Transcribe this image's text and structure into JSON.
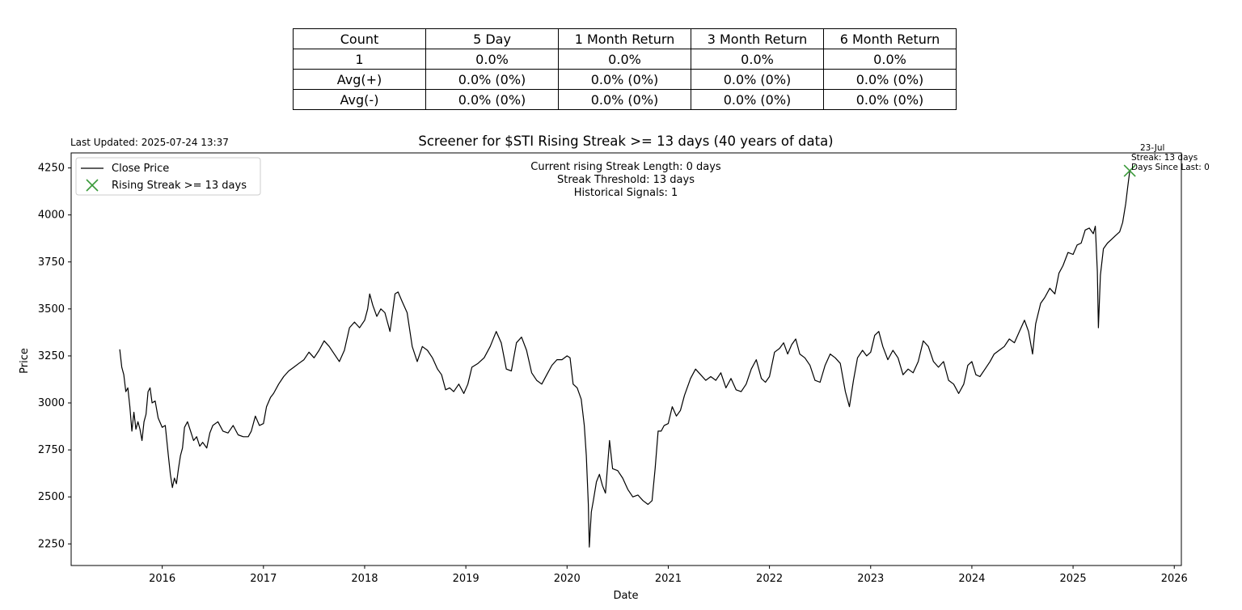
{
  "table": {
    "header": [
      "Count",
      "5 Day",
      "1 Month Return",
      "3 Month Return",
      "6 Month Return"
    ],
    "rows": [
      [
        "1",
        "0.0%",
        "0.0%",
        "0.0%",
        "0.0%"
      ],
      [
        "Avg(+)",
        "0.0% (0%)",
        "0.0% (0%)",
        "0.0% (0%)",
        "0.0% (0%)"
      ],
      [
        "Avg(-)",
        "0.0% (0%)",
        "0.0% (0%)",
        "0.0% (0%)",
        "0.0% (0%)"
      ]
    ]
  },
  "last_updated": "Last Updated: 2025-07-24 13:37",
  "info_lines": [
    "Current rising Streak Length: 0 days",
    "Streak Threshold: 13 days",
    "Historical Signals: 1"
  ],
  "signal_annotation": [
    "23-Jul",
    "Streak: 13 days",
    "Days Since Last: 0"
  ],
  "colors": {
    "line": "#000000",
    "marker": "#3a9a3a"
  },
  "chart_data": {
    "type": "line",
    "title": "Screener for $STI Rising Streak >= 13 days (40 years of data)",
    "xlabel": "Date",
    "ylabel": "Price",
    "xlim": [
      2015.1,
      2026.07
    ],
    "ylim": [
      2135,
      4330
    ],
    "xticks": [
      "2016",
      "2017",
      "2018",
      "2019",
      "2020",
      "2021",
      "2022",
      "2023",
      "2024",
      "2025",
      "2026"
    ],
    "yticks": [
      "2250",
      "2500",
      "2750",
      "3000",
      "3250",
      "3500",
      "3750",
      "4000",
      "4250"
    ],
    "legend_position": "top-left",
    "series": [
      {
        "name": "Close Price",
        "points": [
          [
            2015.58,
            3285
          ],
          [
            2015.6,
            3190
          ],
          [
            2015.62,
            3150
          ],
          [
            2015.64,
            3060
          ],
          [
            2015.66,
            3080
          ],
          [
            2015.68,
            2980
          ],
          [
            2015.7,
            2850
          ],
          [
            2015.72,
            2950
          ],
          [
            2015.74,
            2860
          ],
          [
            2015.76,
            2900
          ],
          [
            2015.78,
            2860
          ],
          [
            2015.8,
            2800
          ],
          [
            2015.82,
            2900
          ],
          [
            2015.84,
            2940
          ],
          [
            2015.86,
            3060
          ],
          [
            2015.88,
            3080
          ],
          [
            2015.9,
            3000
          ],
          [
            2015.93,
            3010
          ],
          [
            2015.96,
            2920
          ],
          [
            2016.0,
            2870
          ],
          [
            2016.03,
            2880
          ],
          [
            2016.06,
            2720
          ],
          [
            2016.08,
            2620
          ],
          [
            2016.1,
            2550
          ],
          [
            2016.12,
            2600
          ],
          [
            2016.14,
            2570
          ],
          [
            2016.16,
            2650
          ],
          [
            2016.18,
            2720
          ],
          [
            2016.2,
            2760
          ],
          [
            2016.22,
            2870
          ],
          [
            2016.25,
            2900
          ],
          [
            2016.28,
            2850
          ],
          [
            2016.31,
            2800
          ],
          [
            2016.34,
            2820
          ],
          [
            2016.37,
            2770
          ],
          [
            2016.4,
            2790
          ],
          [
            2016.44,
            2760
          ],
          [
            2016.47,
            2840
          ],
          [
            2016.5,
            2880
          ],
          [
            2016.55,
            2900
          ],
          [
            2016.6,
            2850
          ],
          [
            2016.65,
            2840
          ],
          [
            2016.7,
            2880
          ],
          [
            2016.75,
            2830
          ],
          [
            2016.8,
            2820
          ],
          [
            2016.85,
            2820
          ],
          [
            2016.88,
            2850
          ],
          [
            2016.92,
            2930
          ],
          [
            2016.96,
            2880
          ],
          [
            2017.0,
            2890
          ],
          [
            2017.03,
            2980
          ],
          [
            2017.07,
            3030
          ],
          [
            2017.1,
            3050
          ],
          [
            2017.15,
            3100
          ],
          [
            2017.2,
            3140
          ],
          [
            2017.25,
            3170
          ],
          [
            2017.3,
            3190
          ],
          [
            2017.35,
            3210
          ],
          [
            2017.4,
            3230
          ],
          [
            2017.45,
            3270
          ],
          [
            2017.5,
            3240
          ],
          [
            2017.55,
            3280
          ],
          [
            2017.6,
            3330
          ],
          [
            2017.65,
            3300
          ],
          [
            2017.7,
            3260
          ],
          [
            2017.75,
            3220
          ],
          [
            2017.8,
            3280
          ],
          [
            2017.85,
            3400
          ],
          [
            2017.9,
            3430
          ],
          [
            2017.95,
            3400
          ],
          [
            2018.0,
            3440
          ],
          [
            2018.03,
            3500
          ],
          [
            2018.05,
            3580
          ],
          [
            2018.08,
            3520
          ],
          [
            2018.12,
            3460
          ],
          [
            2018.16,
            3500
          ],
          [
            2018.2,
            3480
          ],
          [
            2018.25,
            3380
          ],
          [
            2018.3,
            3580
          ],
          [
            2018.33,
            3590
          ],
          [
            2018.37,
            3540
          ],
          [
            2018.42,
            3480
          ],
          [
            2018.47,
            3300
          ],
          [
            2018.52,
            3220
          ],
          [
            2018.57,
            3300
          ],
          [
            2018.62,
            3280
          ],
          [
            2018.67,
            3240
          ],
          [
            2018.72,
            3180
          ],
          [
            2018.76,
            3150
          ],
          [
            2018.8,
            3070
          ],
          [
            2018.84,
            3080
          ],
          [
            2018.88,
            3060
          ],
          [
            2018.93,
            3100
          ],
          [
            2018.98,
            3050
          ],
          [
            2019.02,
            3100
          ],
          [
            2019.06,
            3190
          ],
          [
            2019.12,
            3210
          ],
          [
            2019.18,
            3240
          ],
          [
            2019.24,
            3300
          ],
          [
            2019.3,
            3380
          ],
          [
            2019.35,
            3320
          ],
          [
            2019.4,
            3180
          ],
          [
            2019.45,
            3170
          ],
          [
            2019.5,
            3320
          ],
          [
            2019.55,
            3350
          ],
          [
            2019.6,
            3280
          ],
          [
            2019.65,
            3160
          ],
          [
            2019.7,
            3120
          ],
          [
            2019.75,
            3100
          ],
          [
            2019.8,
            3150
          ],
          [
            2019.85,
            3200
          ],
          [
            2019.9,
            3230
          ],
          [
            2019.95,
            3230
          ],
          [
            2020.0,
            3250
          ],
          [
            2020.03,
            3240
          ],
          [
            2020.06,
            3100
          ],
          [
            2020.1,
            3080
          ],
          [
            2020.14,
            3020
          ],
          [
            2020.17,
            2880
          ],
          [
            2020.19,
            2720
          ],
          [
            2020.21,
            2460
          ],
          [
            2020.22,
            2233
          ],
          [
            2020.24,
            2420
          ],
          [
            2020.26,
            2480
          ],
          [
            2020.29,
            2580
          ],
          [
            2020.32,
            2620
          ],
          [
            2020.35,
            2560
          ],
          [
            2020.38,
            2520
          ],
          [
            2020.42,
            2800
          ],
          [
            2020.45,
            2650
          ],
          [
            2020.5,
            2640
          ],
          [
            2020.55,
            2600
          ],
          [
            2020.6,
            2540
          ],
          [
            2020.65,
            2500
          ],
          [
            2020.7,
            2510
          ],
          [
            2020.75,
            2480
          ],
          [
            2020.8,
            2460
          ],
          [
            2020.84,
            2480
          ],
          [
            2020.87,
            2650
          ],
          [
            2020.9,
            2850
          ],
          [
            2020.93,
            2850
          ],
          [
            2020.96,
            2880
          ],
          [
            2021.0,
            2890
          ],
          [
            2021.04,
            2980
          ],
          [
            2021.08,
            2930
          ],
          [
            2021.12,
            2960
          ],
          [
            2021.16,
            3040
          ],
          [
            2021.22,
            3130
          ],
          [
            2021.27,
            3180
          ],
          [
            2021.32,
            3150
          ],
          [
            2021.37,
            3120
          ],
          [
            2021.42,
            3140
          ],
          [
            2021.47,
            3120
          ],
          [
            2021.52,
            3160
          ],
          [
            2021.57,
            3080
          ],
          [
            2021.62,
            3130
          ],
          [
            2021.67,
            3070
          ],
          [
            2021.72,
            3060
          ],
          [
            2021.77,
            3100
          ],
          [
            2021.82,
            3180
          ],
          [
            2021.87,
            3230
          ],
          [
            2021.92,
            3130
          ],
          [
            2021.96,
            3110
          ],
          [
            2022.0,
            3140
          ],
          [
            2022.05,
            3270
          ],
          [
            2022.1,
            3290
          ],
          [
            2022.14,
            3320
          ],
          [
            2022.18,
            3260
          ],
          [
            2022.22,
            3310
          ],
          [
            2022.26,
            3340
          ],
          [
            2022.3,
            3260
          ],
          [
            2022.35,
            3240
          ],
          [
            2022.4,
            3200
          ],
          [
            2022.45,
            3120
          ],
          [
            2022.5,
            3110
          ],
          [
            2022.55,
            3200
          ],
          [
            2022.6,
            3260
          ],
          [
            2022.65,
            3240
          ],
          [
            2022.7,
            3210
          ],
          [
            2022.75,
            3060
          ],
          [
            2022.79,
            2980
          ],
          [
            2022.83,
            3120
          ],
          [
            2022.87,
            3240
          ],
          [
            2022.92,
            3280
          ],
          [
            2022.96,
            3250
          ],
          [
            2023.0,
            3270
          ],
          [
            2023.04,
            3360
          ],
          [
            2023.08,
            3380
          ],
          [
            2023.12,
            3300
          ],
          [
            2023.17,
            3230
          ],
          [
            2023.22,
            3280
          ],
          [
            2023.27,
            3240
          ],
          [
            2023.32,
            3150
          ],
          [
            2023.37,
            3180
          ],
          [
            2023.42,
            3160
          ],
          [
            2023.47,
            3220
          ],
          [
            2023.52,
            3330
          ],
          [
            2023.57,
            3300
          ],
          [
            2023.62,
            3220
          ],
          [
            2023.67,
            3190
          ],
          [
            2023.72,
            3220
          ],
          [
            2023.77,
            3120
          ],
          [
            2023.82,
            3100
          ],
          [
            2023.87,
            3050
          ],
          [
            2023.92,
            3100
          ],
          [
            2023.96,
            3200
          ],
          [
            2024.0,
            3220
          ],
          [
            2024.04,
            3150
          ],
          [
            2024.08,
            3140
          ],
          [
            2024.13,
            3180
          ],
          [
            2024.18,
            3220
          ],
          [
            2024.22,
            3260
          ],
          [
            2024.27,
            3280
          ],
          [
            2024.32,
            3300
          ],
          [
            2024.37,
            3340
          ],
          [
            2024.42,
            3320
          ],
          [
            2024.47,
            3380
          ],
          [
            2024.52,
            3440
          ],
          [
            2024.56,
            3380
          ],
          [
            2024.6,
            3260
          ],
          [
            2024.63,
            3420
          ],
          [
            2024.68,
            3530
          ],
          [
            2024.72,
            3560
          ],
          [
            2024.77,
            3610
          ],
          [
            2024.82,
            3580
          ],
          [
            2024.86,
            3690
          ],
          [
            2024.9,
            3730
          ],
          [
            2024.95,
            3800
          ],
          [
            2025.0,
            3790
          ],
          [
            2025.04,
            3840
          ],
          [
            2025.08,
            3850
          ],
          [
            2025.12,
            3920
          ],
          [
            2025.16,
            3930
          ],
          [
            2025.2,
            3900
          ],
          [
            2025.22,
            3940
          ],
          [
            2025.24,
            3700
          ],
          [
            2025.25,
            3400
          ],
          [
            2025.27,
            3680
          ],
          [
            2025.3,
            3820
          ],
          [
            2025.34,
            3850
          ],
          [
            2025.38,
            3870
          ],
          [
            2025.42,
            3890
          ],
          [
            2025.46,
            3910
          ],
          [
            2025.49,
            3960
          ],
          [
            2025.52,
            4060
          ],
          [
            2025.54,
            4150
          ],
          [
            2025.56,
            4235
          ]
        ]
      },
      {
        "name": "Rising Streak >= 13 days",
        "points": [
          [
            2025.56,
            4235
          ]
        ]
      }
    ]
  }
}
